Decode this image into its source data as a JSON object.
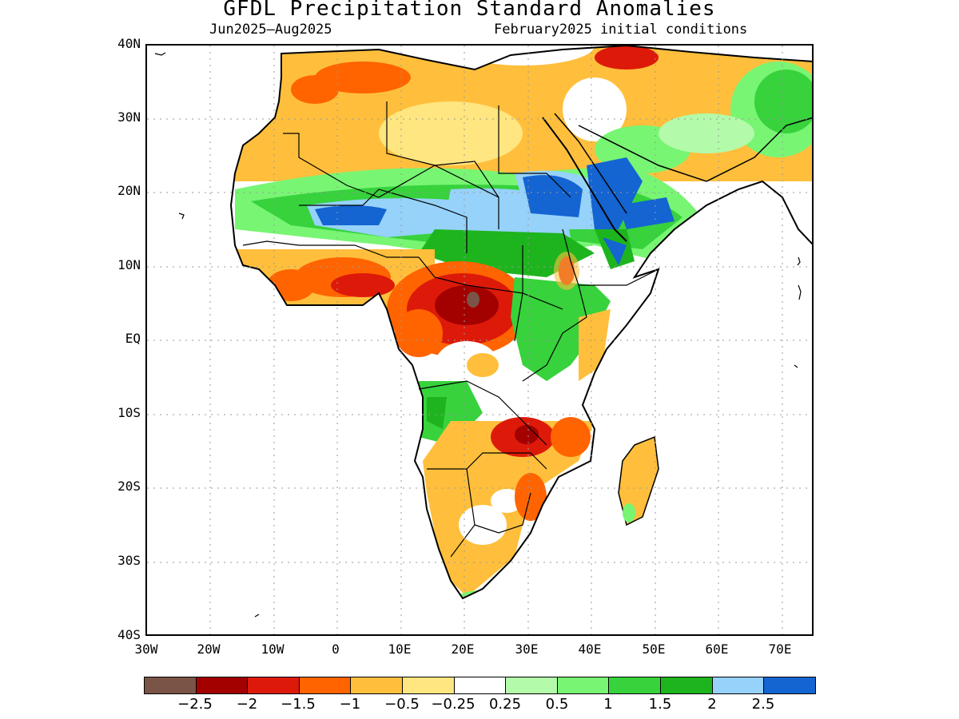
{
  "title": "GFDL Precipitation Standard Anomalies",
  "period": "Jun2025–Aug2025",
  "init": "February2025 initial conditions",
  "lat_labels": [
    "40N",
    "30N",
    "20N",
    "10N",
    "EQ",
    "10S",
    "20S",
    "30S",
    "40S"
  ],
  "lon_labels": [
    "30W",
    "20W",
    "10W",
    "0",
    "10E",
    "20E",
    "30E",
    "40E",
    "50E",
    "60E",
    "70E"
  ],
  "colorbar": {
    "colors": [
      "#7a5446",
      "#a30000",
      "#dd1a0a",
      "#ff6400",
      "#ffbf3c",
      "#ffe680",
      "#ffffff",
      "#b3faaa",
      "#78f573",
      "#37d23c",
      "#1eb41e",
      "#96d2fa",
      "#1464d2"
    ],
    "labels": [
      "−2.5",
      "−2",
      "−1.5",
      "−1",
      "−0.5",
      "−0.25",
      "0.25",
      "0.5",
      "1",
      "1.5",
      "2",
      "2.5"
    ]
  },
  "map_colors": {
    "land_base": "#ffffff",
    "orange": "#ffbf3c",
    "yellow": "#ffe680",
    "dark_orange": "#ff6400",
    "red": "#dd1a0a",
    "dark_red": "#a30000",
    "brown": "#7a5446",
    "light_green": "#b3faaa",
    "green": "#78f573",
    "mid_green": "#37d23c",
    "dark_green": "#1eb41e",
    "light_blue": "#96d2fa",
    "blue": "#1464d2"
  }
}
